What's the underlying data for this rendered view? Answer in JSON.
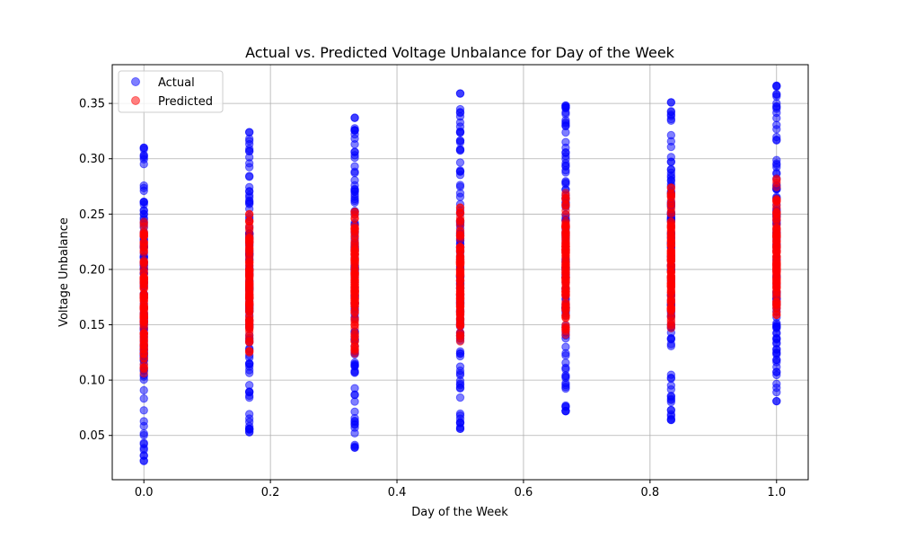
{
  "chart_data": {
    "type": "scatter",
    "title": "Actual vs. Predicted Voltage Unbalance for Day of the Week",
    "xlabel": "Day of the Week",
    "ylabel": "Voltage Unbalance",
    "xlim": [
      -0.05,
      1.05
    ],
    "ylim": [
      0.01,
      0.385
    ],
    "xticks": [
      0.0,
      0.2,
      0.4,
      0.6,
      0.8,
      1.0
    ],
    "xtick_labels": [
      "0.0",
      "0.2",
      "0.4",
      "0.6",
      "0.8",
      "1.0"
    ],
    "yticks": [
      0.05,
      0.1,
      0.15,
      0.2,
      0.25,
      0.3,
      0.35
    ],
    "ytick_labels": [
      "0.05",
      "0.10",
      "0.15",
      "0.20",
      "0.25",
      "0.30",
      "0.35"
    ],
    "grid": true,
    "legend_position": "top-left",
    "categories_x": [
      0.0,
      0.1667,
      0.3333,
      0.5,
      0.6667,
      0.8333,
      1.0
    ],
    "series": [
      {
        "name": "Actual",
        "color": "#0000ff",
        "alpha": 0.5,
        "ranges": [
          {
            "x": 0.0,
            "min": 0.027,
            "max": 0.31,
            "outliers": [
              0.027,
              0.032,
              0.037,
              0.31
            ]
          },
          {
            "x": 0.1667,
            "min": 0.053,
            "max": 0.324,
            "outliers": [
              0.053,
              0.056,
              0.324
            ]
          },
          {
            "x": 0.3333,
            "min": 0.039,
            "max": 0.337,
            "outliers": [
              0.039,
              0.052,
              0.057,
              0.337
            ]
          },
          {
            "x": 0.5,
            "min": 0.056,
            "max": 0.359,
            "outliers": [
              0.056,
              0.062,
              0.329,
              0.359
            ]
          },
          {
            "x": 0.6667,
            "min": 0.072,
            "max": 0.348,
            "outliers": [
              0.072,
              0.077,
              0.333,
              0.348
            ]
          },
          {
            "x": 0.8333,
            "min": 0.064,
            "max": 0.351,
            "outliers": [
              0.064,
              0.082,
              0.085,
              0.351
            ]
          },
          {
            "x": 1.0,
            "min": 0.081,
            "max": 0.366,
            "outliers": [
              0.081,
              0.089,
              0.366
            ]
          }
        ]
      },
      {
        "name": "Predicted",
        "color": "#ff0000",
        "alpha": 0.5,
        "ranges": [
          {
            "x": 0.0,
            "min": 0.106,
            "max": 0.243,
            "outliers": []
          },
          {
            "x": 0.1667,
            "min": 0.125,
            "max": 0.25,
            "outliers": []
          },
          {
            "x": 0.3333,
            "min": 0.124,
            "max": 0.252,
            "outliers": []
          },
          {
            "x": 0.5,
            "min": 0.135,
            "max": 0.256,
            "outliers": []
          },
          {
            "x": 0.6667,
            "min": 0.141,
            "max": 0.269,
            "outliers": []
          },
          {
            "x": 0.8333,
            "min": 0.147,
            "max": 0.274,
            "outliers": []
          },
          {
            "x": 1.0,
            "min": 0.159,
            "max": 0.282,
            "outliers": []
          }
        ]
      }
    ]
  }
}
